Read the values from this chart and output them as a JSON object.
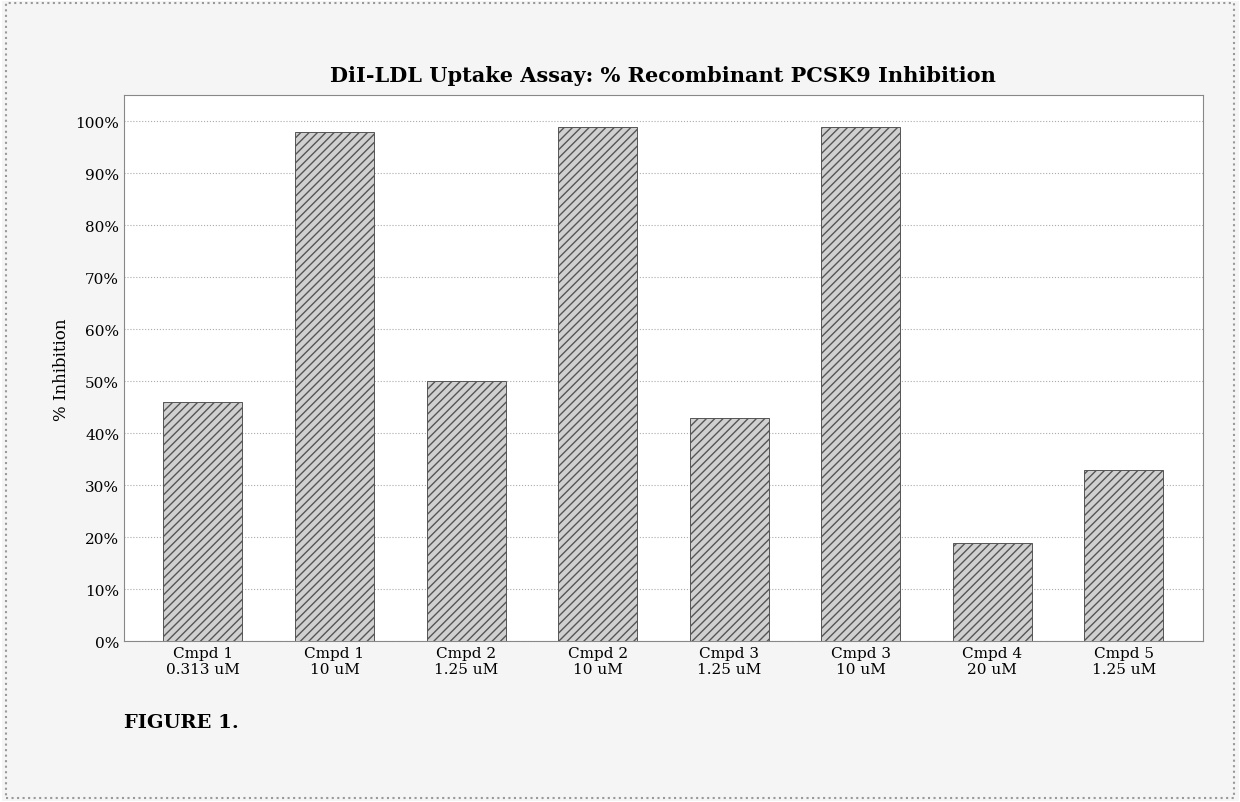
{
  "title": "DiI-LDL Uptake Assay: % Recombinant PCSK9 Inhibition",
  "ylabel": "% Inhibition",
  "categories": [
    "Cmpd 1\n0.313 uM",
    "Cmpd 1\n10 uM",
    "Cmpd 2\n1.25 uM",
    "Cmpd 2\n10 uM",
    "Cmpd 3\n1.25 uM",
    "Cmpd 3\n10 uM",
    "Cmpd 4\n20 uM",
    "Cmpd 5\n1.25 uM"
  ],
  "values": [
    0.46,
    0.98,
    0.5,
    0.99,
    0.43,
    0.99,
    0.19,
    0.33
  ],
  "bar_color": "#d0d0d0",
  "hatch": "////",
  "background_color": "#f5f5f5",
  "chart_bg": "#ffffff",
  "ylim": [
    0,
    1.05
  ],
  "yticks": [
    0,
    0.1,
    0.2,
    0.3,
    0.4,
    0.5,
    0.6,
    0.7,
    0.8,
    0.9,
    1.0
  ],
  "ytick_labels": [
    "0%",
    "10%",
    "20%",
    "30%",
    "40%",
    "50%",
    "60%",
    "70%",
    "80%",
    "90%",
    "100%"
  ],
  "title_fontsize": 15,
  "axis_label_fontsize": 12,
  "tick_fontsize": 11,
  "figure_caption": "FIGURE 1.",
  "caption_fontsize": 14,
  "bar_width": 0.6,
  "grid_color": "#aaaaaa",
  "spine_color": "#888888",
  "outer_border_color": "#999999"
}
